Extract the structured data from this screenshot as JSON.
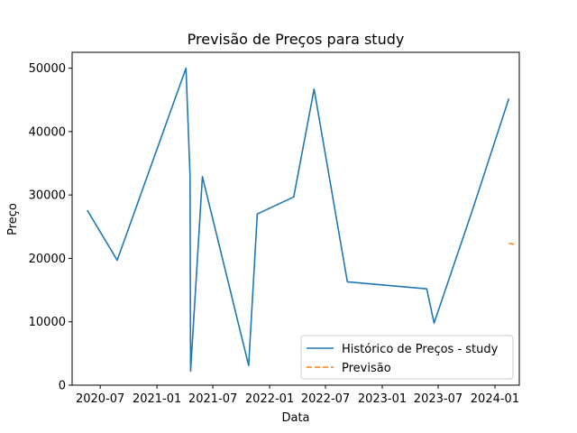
{
  "chart_data": {
    "type": "line",
    "title": "Previsão de Preços para study",
    "xlabel": "Data",
    "ylabel": "Preço",
    "xlim": [
      "2020-04-01",
      "2024-03-20"
    ],
    "ylim": [
      0,
      52500
    ],
    "x_ticks": [
      {
        "date": "2020-07-01",
        "label": "2020-07"
      },
      {
        "date": "2021-01-01",
        "label": "2021-01"
      },
      {
        "date": "2021-07-01",
        "label": "2021-07"
      },
      {
        "date": "2022-01-01",
        "label": "2022-01"
      },
      {
        "date": "2022-07-01",
        "label": "2022-07"
      },
      {
        "date": "2023-01-01",
        "label": "2023-01"
      },
      {
        "date": "2023-07-01",
        "label": "2023-07"
      },
      {
        "date": "2024-01-01",
        "label": "2024-01"
      }
    ],
    "y_ticks": [
      0,
      10000,
      20000,
      30000,
      40000,
      50000
    ],
    "grid": false,
    "legend": "lower-right",
    "series": [
      {
        "name": "Histórico de Preços - study",
        "color": "#1f77b4",
        "style": "solid",
        "points": [
          {
            "x": "2020-05-20",
            "y": 27600
          },
          {
            "x": "2020-08-25",
            "y": 19700
          },
          {
            "x": "2021-04-05",
            "y": 50000
          },
          {
            "x": "2021-04-18",
            "y": 33000
          },
          {
            "x": "2021-04-20",
            "y": 2200
          },
          {
            "x": "2021-05-28",
            "y": 32900
          },
          {
            "x": "2021-10-25",
            "y": 3100
          },
          {
            "x": "2021-11-22",
            "y": 27000
          },
          {
            "x": "2022-03-20",
            "y": 29700
          },
          {
            "x": "2022-05-25",
            "y": 46700
          },
          {
            "x": "2022-09-10",
            "y": 16300
          },
          {
            "x": "2023-05-25",
            "y": 15200
          },
          {
            "x": "2023-06-18",
            "y": 9800
          },
          {
            "x": "2023-10-22",
            "y": 27900
          },
          {
            "x": "2024-02-15",
            "y": 45200
          }
        ]
      },
      {
        "name": "Previsão",
        "color": "#ff7f0e",
        "style": "dashed",
        "points": [
          {
            "x": "2024-02-15",
            "y": 22400
          },
          {
            "x": "2024-03-05",
            "y": 22200
          }
        ]
      }
    ]
  }
}
